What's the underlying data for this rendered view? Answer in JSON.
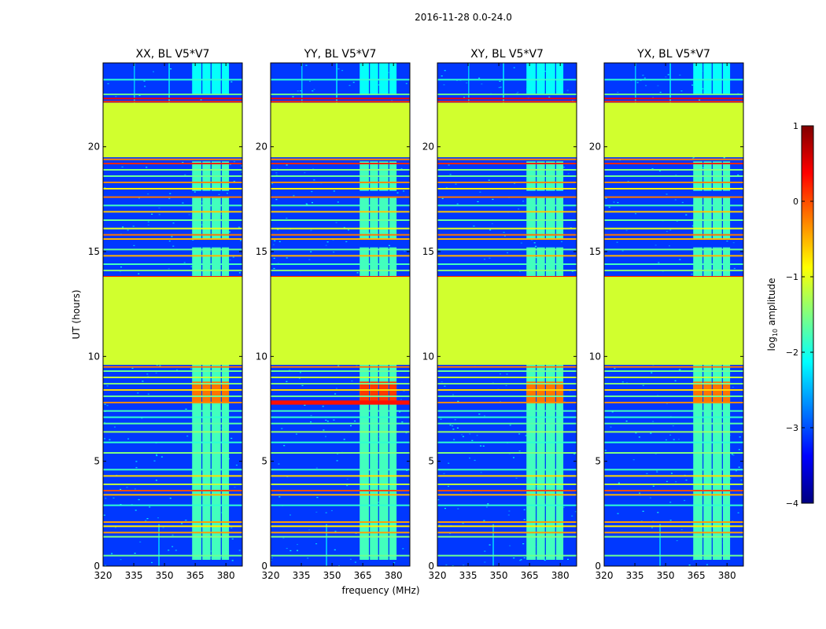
{
  "chart_data": {
    "type": "heatmap",
    "title": "2016-11-28 0.0-24.0",
    "xlabel": "frequency (MHz)",
    "ylabel": "UT (hours)",
    "xlim": [
      320,
      388
    ],
    "ylim": [
      0,
      24
    ],
    "xticks": [
      320,
      335,
      350,
      365,
      380
    ],
    "yticks": [
      0,
      5,
      10,
      15,
      20
    ],
    "panels": [
      {
        "title": "XX, BL V5*V7",
        "flare_level": -0.2,
        "band_8h_extends_left": false
      },
      {
        "title": "YY, BL V5*V7",
        "flare_level": 0.1,
        "band_8h_extends_left": true
      },
      {
        "title": "XY, BL V5*V7",
        "flare_level": -0.2,
        "band_8h_extends_left": false
      },
      {
        "title": "YX, BL V5*V7",
        "flare_level": -0.2,
        "band_8h_extends_left": false
      }
    ],
    "flagged_blocks_hours": [
      [
        9.6,
        13.8
      ],
      [
        19.5,
        22.1
      ]
    ],
    "flagged_level": -1.1,
    "background_level": -3.1,
    "rfi_band_mhz": [
      [
        363.5,
        368
      ],
      [
        368.5,
        372.5
      ],
      [
        373,
        377.5
      ],
      [
        378,
        381.5
      ]
    ],
    "rfi_active_hours": [
      [
        0.3,
        9.6
      ],
      [
        13.8,
        15.2
      ],
      [
        15.6,
        17.6
      ],
      [
        17.9,
        19.3
      ]
    ],
    "rfi_level": -1.8,
    "horizontal_lines": [
      {
        "t": 0.5,
        "v": -1.6
      },
      {
        "t": 1.4,
        "v": -1.5
      },
      {
        "t": 1.6,
        "v": -0.4
      },
      {
        "t": 1.9,
        "v": -0.8
      },
      {
        "t": 2.1,
        "v": -0.4
      },
      {
        "t": 2.9,
        "v": -1.9
      },
      {
        "t": 3.4,
        "v": -0.5
      },
      {
        "t": 3.6,
        "v": 0.0
      },
      {
        "t": 3.9,
        "v": -1.2
      },
      {
        "t": 4.3,
        "v": -0.7
      },
      {
        "t": 4.6,
        "v": -1.8
      },
      {
        "t": 5.4,
        "v": -1.5
      },
      {
        "t": 5.9,
        "v": -1.9
      },
      {
        "t": 6.4,
        "v": -1.4
      },
      {
        "t": 6.8,
        "v": -1.7
      },
      {
        "t": 7.1,
        "v": -1.9
      },
      {
        "t": 7.4,
        "v": -1.8
      },
      {
        "t": 7.8,
        "v": -0.3
      },
      {
        "t": 8.1,
        "v": -1.6
      },
      {
        "t": 8.4,
        "v": -0.7
      },
      {
        "t": 8.7,
        "v": -1.5
      },
      {
        "t": 9.0,
        "v": -1.2
      },
      {
        "t": 9.3,
        "v": -1.6
      },
      {
        "t": 9.5,
        "v": -0.2
      },
      {
        "t": 13.8,
        "v": 0.3
      },
      {
        "t": 14.1,
        "v": -1.5
      },
      {
        "t": 14.4,
        "v": -1.8
      },
      {
        "t": 14.8,
        "v": -0.5
      },
      {
        "t": 15.1,
        "v": -1.6
      },
      {
        "t": 15.6,
        "v": -0.5
      },
      {
        "t": 15.8,
        "v": -0.2
      },
      {
        "t": 16.1,
        "v": -1.0
      },
      {
        "t": 16.5,
        "v": -1.6
      },
      {
        "t": 16.9,
        "v": -0.6
      },
      {
        "t": 17.2,
        "v": -1.8
      },
      {
        "t": 17.6,
        "v": -0.2
      },
      {
        "t": 18.0,
        "v": -0.8
      },
      {
        "t": 18.3,
        "v": -0.3
      },
      {
        "t": 18.6,
        "v": -1.6
      },
      {
        "t": 18.9,
        "v": -1.5
      },
      {
        "t": 19.2,
        "v": 0.2
      },
      {
        "t": 19.4,
        "v": -0.3
      },
      {
        "t": 22.15,
        "v": 0.2
      },
      {
        "t": 22.3,
        "v": 0.4
      },
      {
        "t": 22.5,
        "v": -1.6
      },
      {
        "t": 23.2,
        "v": -1.9
      }
    ],
    "colorbar": {
      "label_main": "log",
      "label_sub": "10",
      "label_suffix": " amplitude",
      "range": [
        -4,
        1
      ],
      "ticks": [
        "1",
        "0",
        "−1",
        "−2",
        "−3",
        "−4"
      ],
      "colormap": "jet"
    }
  }
}
